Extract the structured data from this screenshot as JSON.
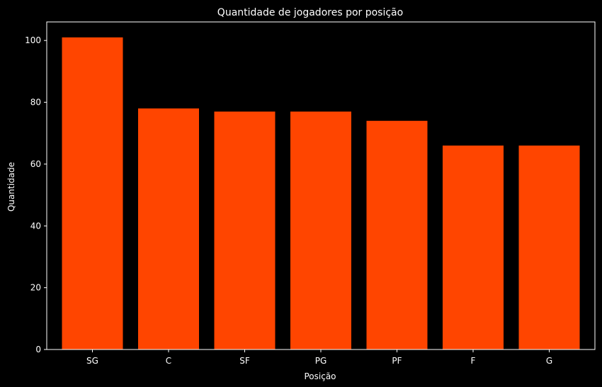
{
  "chart_data": {
    "type": "bar",
    "title": "Quantidade de jogadores por posição",
    "xlabel": "Posição",
    "ylabel": "Quantidade",
    "categories": [
      "SG",
      "C",
      "SF",
      "PG",
      "PF",
      "F",
      "G"
    ],
    "values": [
      101,
      78,
      77,
      77,
      74,
      66,
      66
    ],
    "ylim": [
      0,
      106
    ],
    "yticks": [
      "0",
      "20",
      "40",
      "60",
      "80",
      "100"
    ],
    "grid": false,
    "legend": "none",
    "colors": {
      "background": "#000000",
      "bar": "#ff4500",
      "axis": "#ffffff",
      "text": "#ffffff"
    }
  }
}
